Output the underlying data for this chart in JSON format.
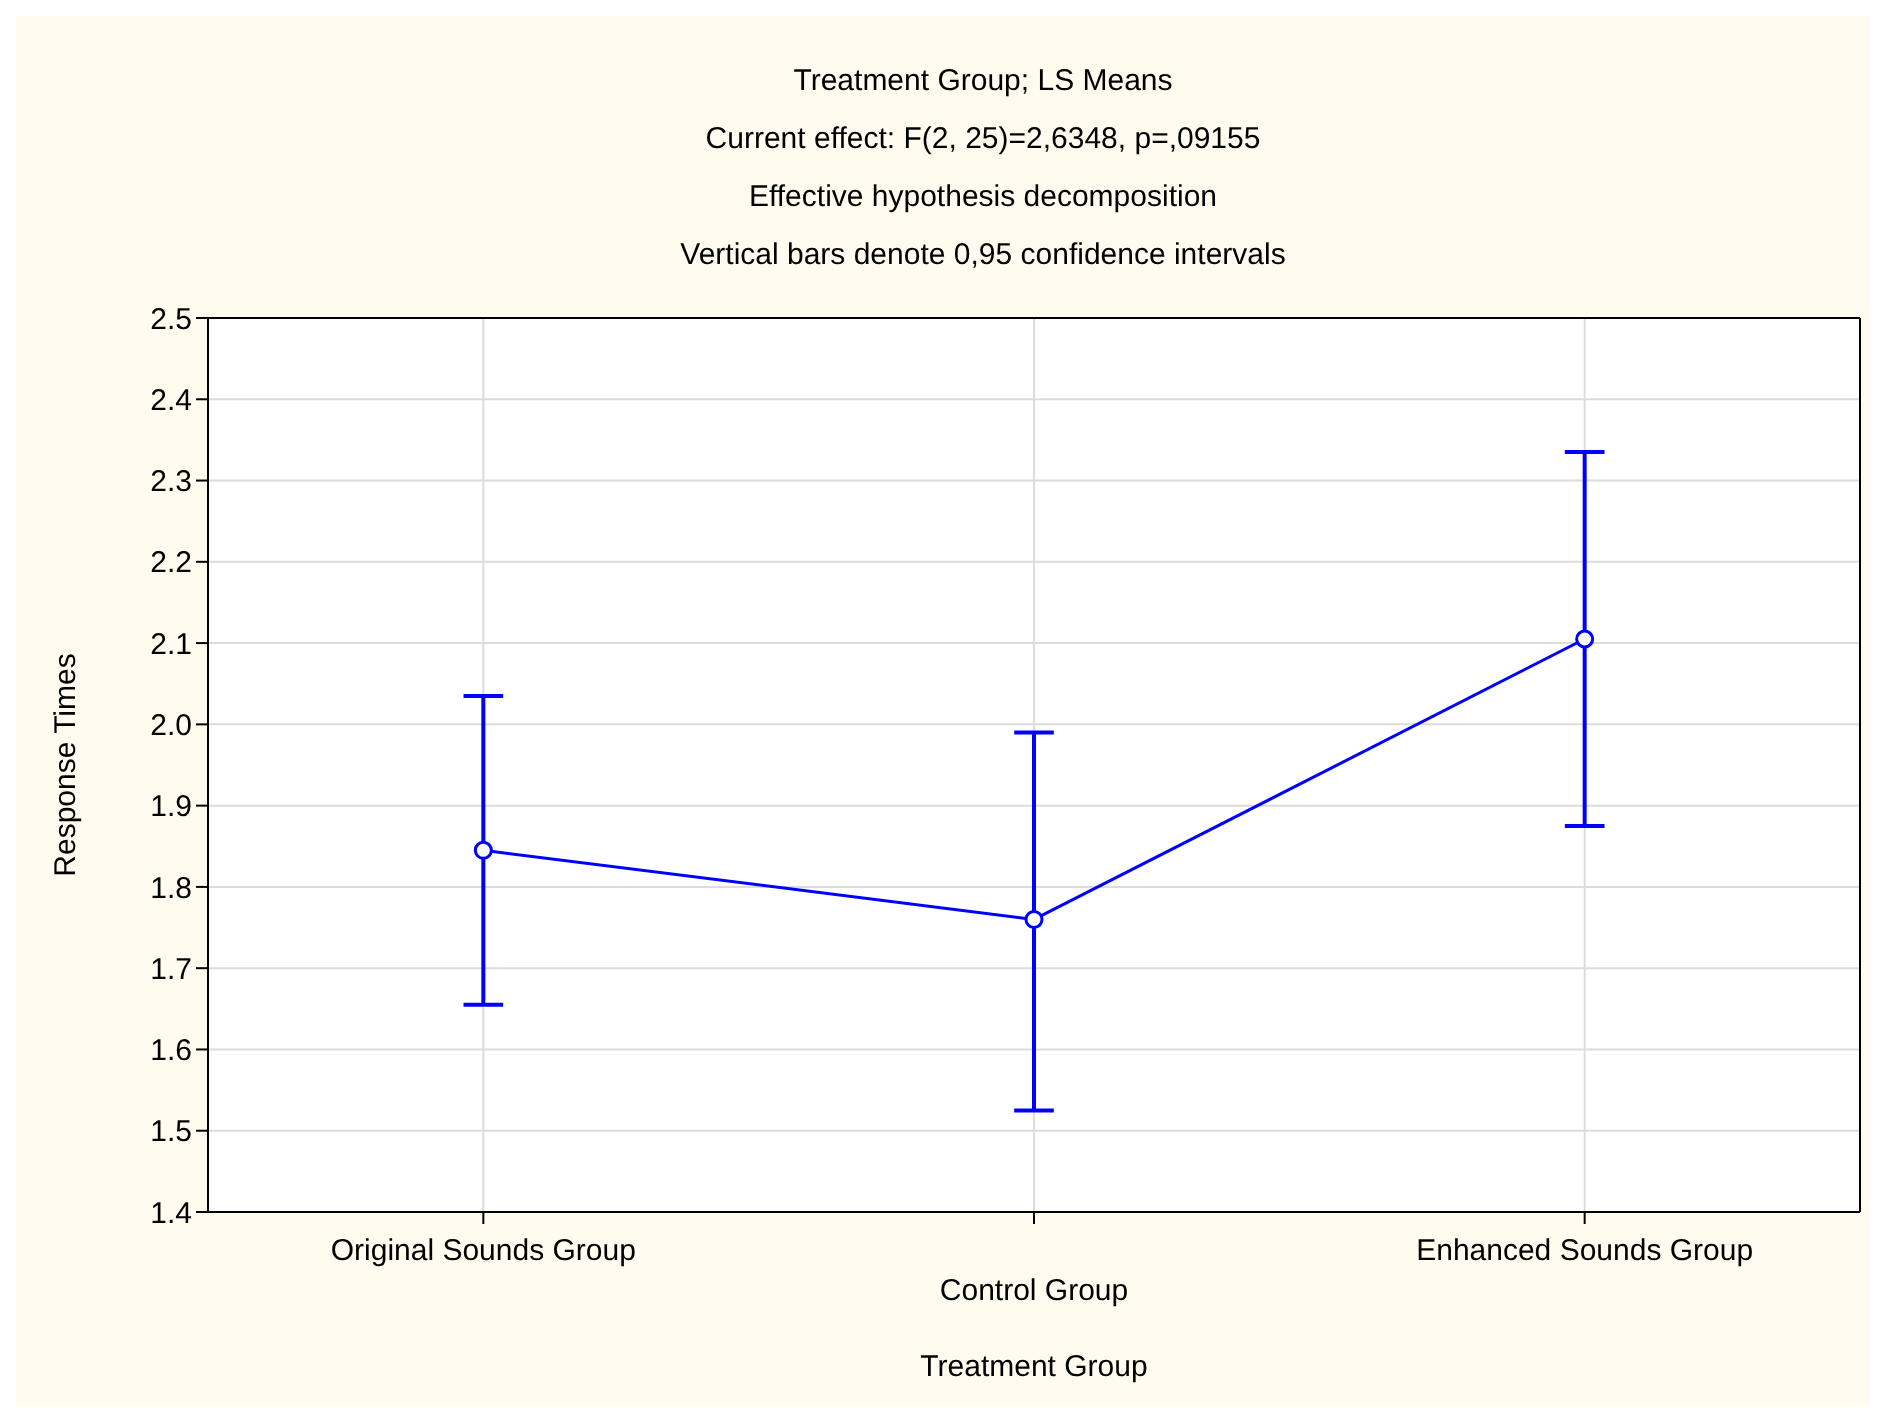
{
  "chart_data": {
    "type": "line",
    "title": "Treatment Group; LS Means",
    "subtitle": "Current effect: F(2, 25)=2,6348, p=,09155\nEffective hypothesis decomposition\nVertical bars denote 0,95 confidence intervals",
    "xlabel": "Treatment Group",
    "ylabel": "Response Times",
    "categories": [
      "Original Sounds Group",
      "Control Group",
      "Enhanced Sounds Group"
    ],
    "color": "#0000ff",
    "values": [
      1.845,
      1.76,
      2.105
    ],
    "errors": [
      [
        1.655,
        2.035
      ],
      [
        1.525,
        1.99
      ],
      [
        1.875,
        2.335
      ]
    ],
    "ylim": [
      1.4,
      2.5
    ],
    "yticks": [
      {
        "value": 1.4,
        "label": "1.4"
      },
      {
        "value": 1.5,
        "label": "1.5"
      },
      {
        "value": 1.6,
        "label": "1.6"
      },
      {
        "value": 1.7,
        "label": "1.7"
      },
      {
        "value": 1.8,
        "label": "1.8"
      },
      {
        "value": 1.9,
        "label": "1.9"
      },
      {
        "value": 2.0,
        "label": "2.0"
      },
      {
        "value": 2.1,
        "label": "2.1"
      },
      {
        "value": 2.2,
        "label": "2.2"
      },
      {
        "value": 2.3,
        "label": "2.3"
      },
      {
        "value": 2.4,
        "label": "2.4"
      },
      {
        "value": 2.5,
        "label": "2.5"
      }
    ],
    "grid": true,
    "marker": "circle",
    "line_style": "solid"
  }
}
